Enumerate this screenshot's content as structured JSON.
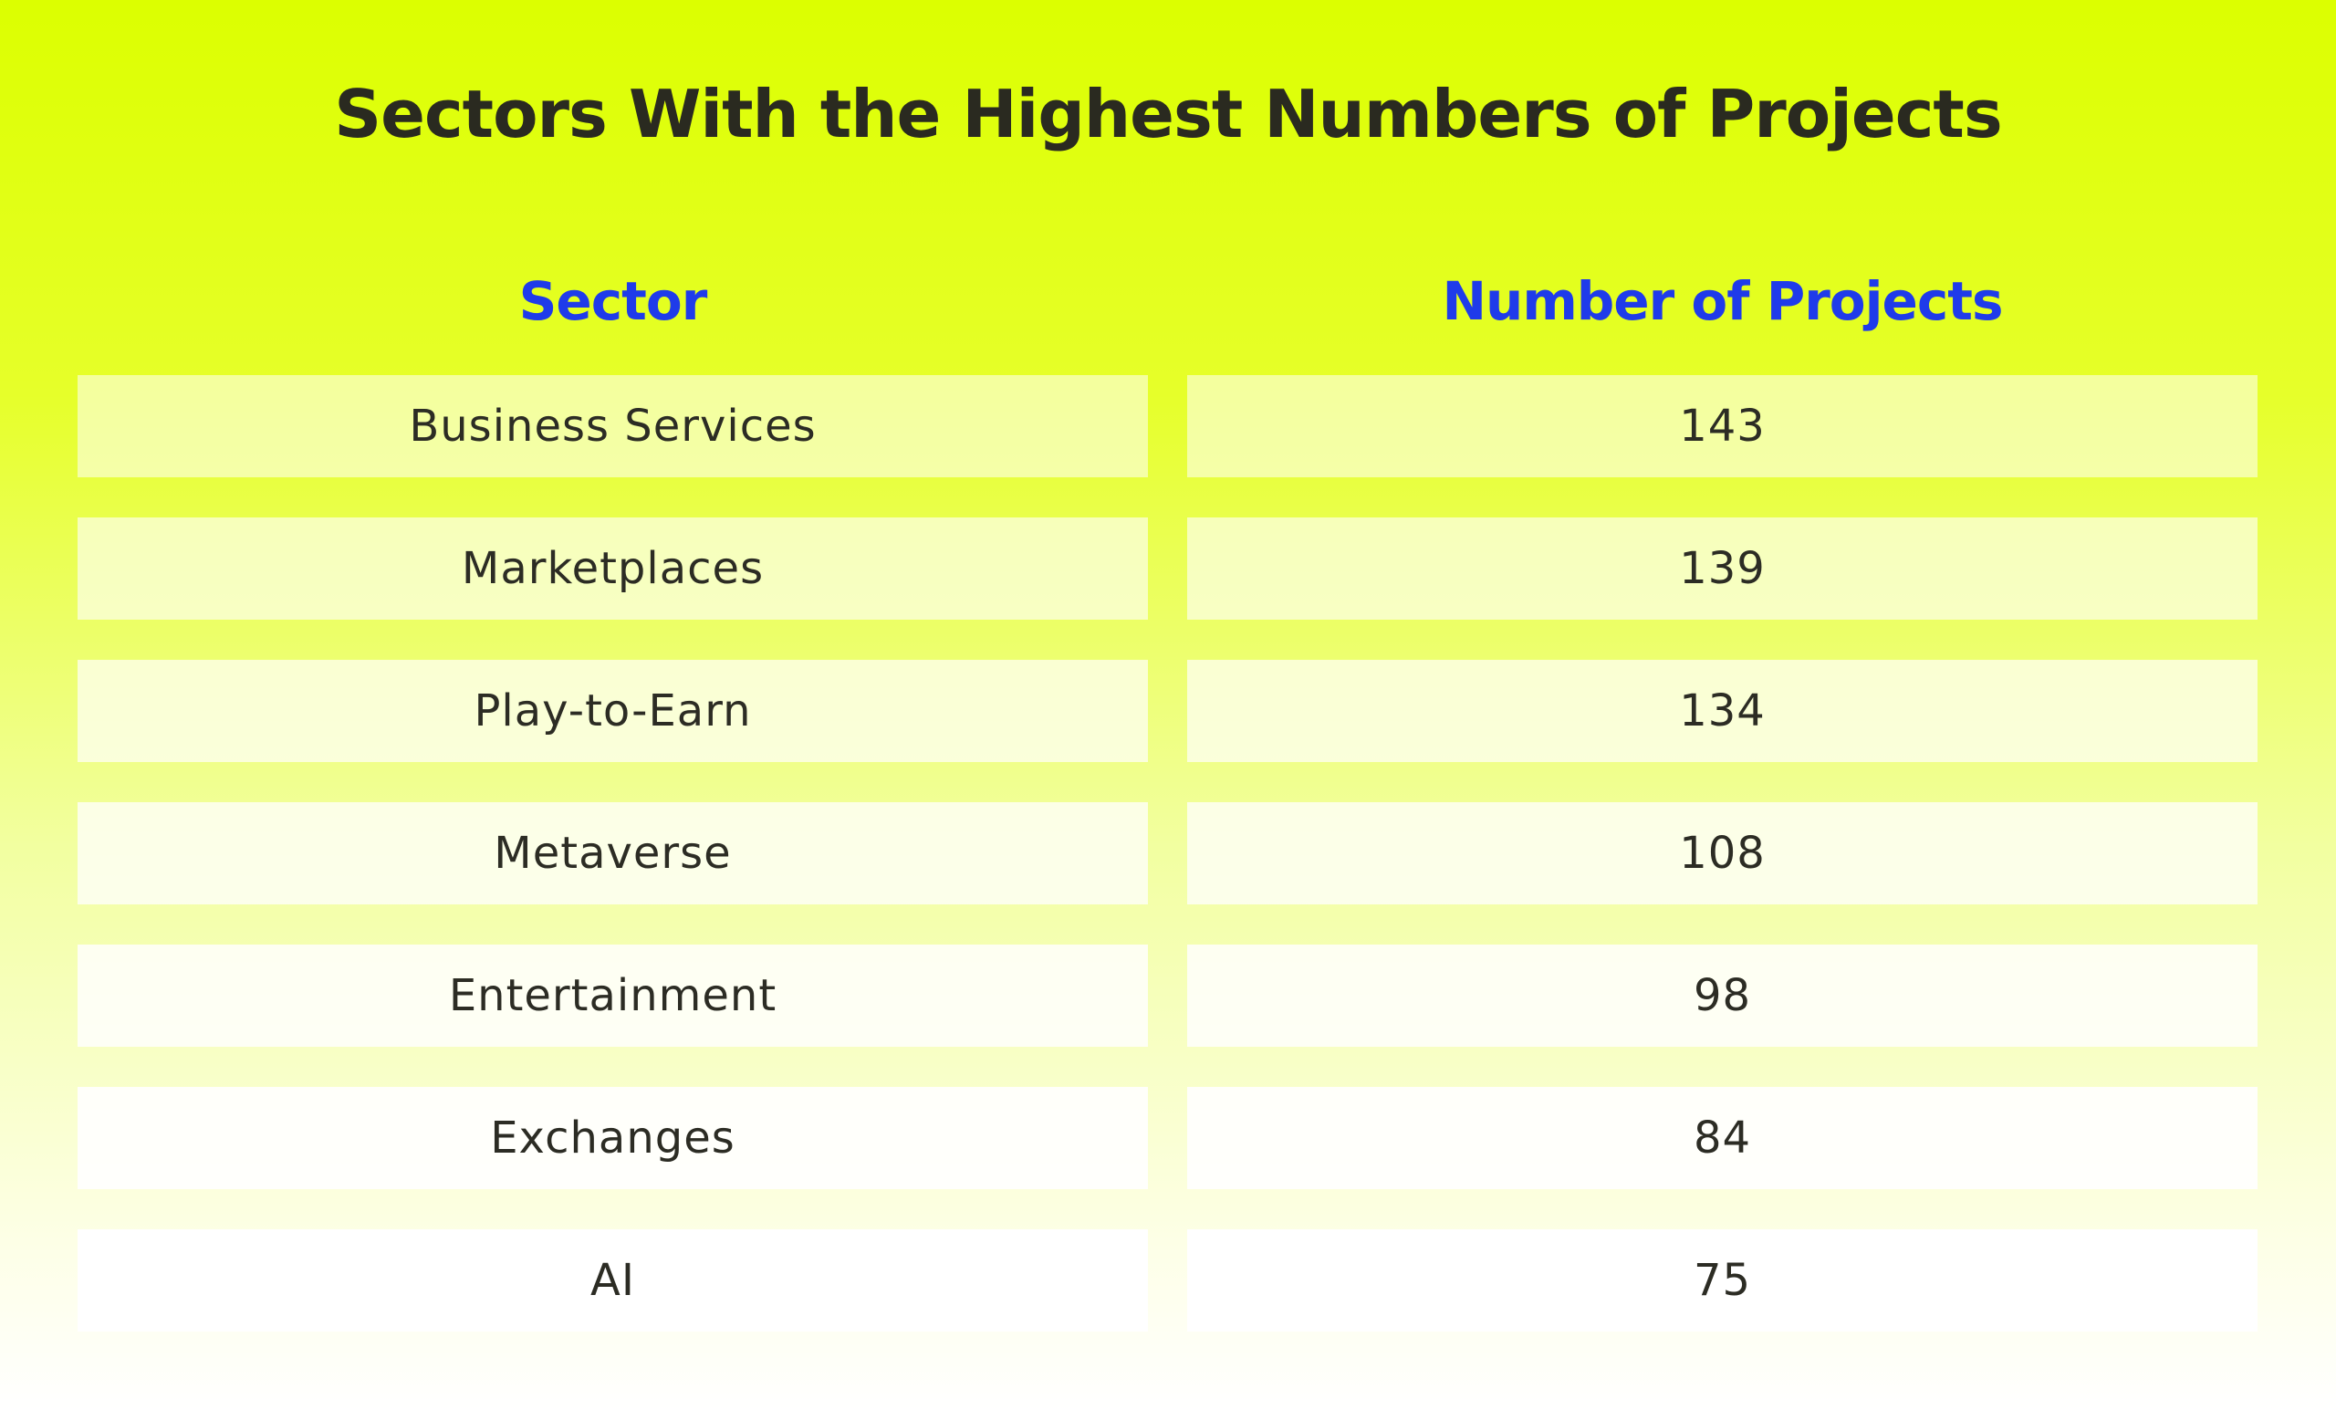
{
  "title": "Sectors With the Highest Numbers of Projects",
  "colors": {
    "header_text": "#1f3bea",
    "title_text": "#2a2a20",
    "cell_text": "#2c2c24",
    "background_top": "#dcff00",
    "background_bottom": "#ffffff"
  },
  "chart_data": {
    "type": "table",
    "columns": [
      "Sector",
      "Number of Projects"
    ],
    "rows": [
      {
        "sector": "Business Services",
        "projects": "143"
      },
      {
        "sector": "Marketplaces",
        "projects": "139"
      },
      {
        "sector": "Play-to-Earn",
        "projects": "134"
      },
      {
        "sector": "Metaverse",
        "projects": "108"
      },
      {
        "sector": "Entertainment",
        "projects": "98"
      },
      {
        "sector": "Exchanges",
        "projects": "84"
      },
      {
        "sector": "AI",
        "projects": "75"
      }
    ]
  }
}
